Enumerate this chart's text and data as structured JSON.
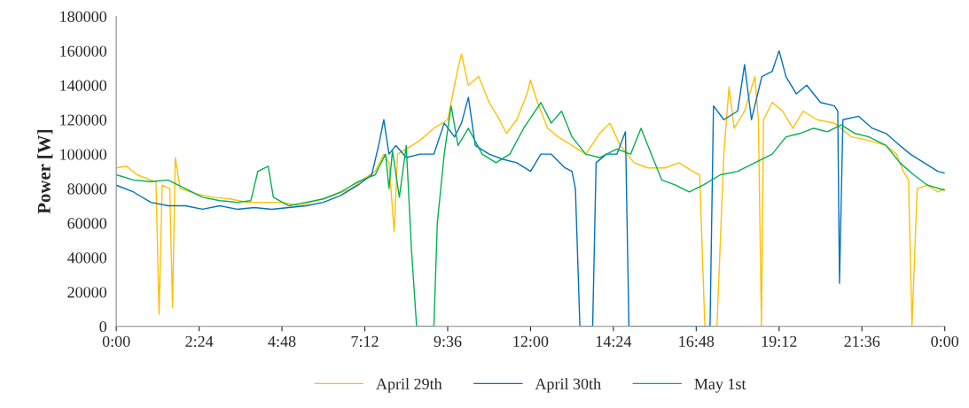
{
  "chart_data": {
    "type": "line",
    "ylabel": "Power [W]",
    "xlim": [
      0,
      24
    ],
    "xticks": [
      {
        "value": 0,
        "label": "0:00"
      },
      {
        "value": 2.4,
        "label": "2:24"
      },
      {
        "value": 4.8,
        "label": "4:48"
      },
      {
        "value": 7.2,
        "label": "7:12"
      },
      {
        "value": 9.6,
        "label": "9:36"
      },
      {
        "value": 12,
        "label": "12:00"
      },
      {
        "value": 14.4,
        "label": "14:24"
      },
      {
        "value": 16.8,
        "label": "16:48"
      },
      {
        "value": 19.2,
        "label": "19:12"
      },
      {
        "value": 21.6,
        "label": "21:36"
      },
      {
        "value": 24,
        "label": "0:00"
      }
    ],
    "ylim": [
      0,
      180000
    ],
    "yticks": [
      0,
      20000,
      40000,
      60000,
      80000,
      100000,
      120000,
      140000,
      160000,
      180000
    ],
    "grid": false,
    "legend": "bottom",
    "marker": "none",
    "line_style": "solid",
    "series": [
      {
        "name": "April 29th",
        "color": "#ffc000",
        "x": [
          0,
          0.3,
          0.6,
          1.0,
          1.15,
          1.24,
          1.33,
          1.55,
          1.63,
          1.71,
          1.85,
          2.3,
          2.8,
          3.3,
          3.8,
          4.3,
          4.8,
          5.3,
          5.8,
          6.3,
          6.8,
          7.2,
          7.5,
          7.75,
          7.9,
          8.05,
          8.15,
          8.4,
          8.8,
          9.2,
          9.6,
          9.9,
          10.0,
          10.2,
          10.5,
          10.8,
          11.1,
          11.3,
          11.6,
          11.9,
          12.0,
          12.2,
          12.5,
          12.8,
          13.2,
          13.6,
          14.0,
          14.3,
          14.6,
          15.0,
          15.4,
          15.9,
          16.3,
          16.7,
          16.9,
          17.05,
          17.4,
          17.6,
          17.75,
          17.9,
          18.2,
          18.5,
          18.6,
          18.69,
          18.75,
          19.0,
          19.3,
          19.6,
          19.9,
          20.3,
          20.8,
          21.3,
          21.8,
          22.3,
          22.6,
          22.8,
          22.95,
          23.05,
          23.2,
          23.5,
          23.8,
          24
        ],
        "values": [
          92000,
          93000,
          88000,
          85000,
          84000,
          7000,
          82000,
          80000,
          11000,
          98000,
          80000,
          77000,
          75000,
          74000,
          72000,
          72000,
          72000,
          70000,
          73000,
          76000,
          80000,
          86000,
          90000,
          100000,
          95000,
          55000,
          100000,
          103000,
          108000,
          115000,
          120000,
          150000,
          158000,
          140000,
          145000,
          130000,
          120000,
          112000,
          120000,
          135000,
          143000,
          130000,
          115000,
          110000,
          105000,
          100000,
          112000,
          118000,
          105000,
          95000,
          92000,
          92000,
          95000,
          90000,
          88000,
          0,
          0,
          100000,
          139000,
          115000,
          125000,
          145000,
          120000,
          0,
          120000,
          130000,
          125000,
          115000,
          125000,
          120000,
          118000,
          110000,
          108000,
          105000,
          100000,
          90000,
          85000,
          0,
          80000,
          82000,
          78000,
          80000
        ]
      },
      {
        "name": "April 30th",
        "color": "#0070c0",
        "x": [
          0,
          0.5,
          1,
          1.5,
          2,
          2.5,
          3,
          3.5,
          4,
          4.5,
          5,
          5.5,
          6,
          6.5,
          7,
          7.4,
          7.6,
          7.75,
          7.9,
          8.1,
          8.4,
          8.8,
          9.2,
          9.5,
          9.8,
          10.0,
          10.2,
          10.4,
          10.8,
          11.2,
          11.6,
          12.0,
          12.3,
          12.6,
          13.0,
          13.2,
          13.3,
          13.43,
          13.8,
          13.9,
          14.2,
          14.5,
          14.75,
          14.85,
          15.5,
          16.5,
          17.2,
          17.3,
          17.6,
          18.0,
          18.2,
          18.4,
          18.7,
          19.0,
          19.2,
          19.4,
          19.7,
          20.0,
          20.4,
          20.8,
          20.9,
          20.95,
          21.05,
          21.5,
          21.9,
          22.3,
          22.7,
          23.0,
          23.4,
          23.8,
          24
        ],
        "values": [
          82000,
          78000,
          72000,
          70000,
          70000,
          68000,
          70000,
          68000,
          69000,
          68000,
          69000,
          70000,
          72000,
          76000,
          82000,
          88000,
          105000,
          120000,
          100000,
          105000,
          98000,
          100000,
          100000,
          118000,
          110000,
          118000,
          133000,
          105000,
          100000,
          97000,
          95000,
          90000,
          100000,
          100000,
          92000,
          90000,
          80000,
          0,
          0,
          95000,
          100000,
          100000,
          113000,
          0,
          0,
          0,
          0,
          128000,
          120000,
          125000,
          152000,
          120000,
          145000,
          148000,
          160000,
          145000,
          135000,
          140000,
          130000,
          128000,
          125000,
          25000,
          120000,
          122000,
          115000,
          112000,
          105000,
          100000,
          95000,
          90000,
          89000
        ]
      },
      {
        "name": "May 1st",
        "color": "#00b050",
        "x": [
          0,
          0.5,
          1,
          1.5,
          2,
          2.5,
          3,
          3.5,
          3.9,
          4.1,
          4.4,
          4.55,
          5,
          5.5,
          6,
          6.5,
          7,
          7.5,
          7.8,
          7.9,
          8.0,
          8.2,
          8.4,
          8.55,
          8.7,
          9.2,
          9.3,
          9.5,
          9.7,
          9.9,
          10.2,
          10.6,
          11,
          11.4,
          11.8,
          12.3,
          12.6,
          12.9,
          13.2,
          13.6,
          14.0,
          14.5,
          14.9,
          15.2,
          15.5,
          15.8,
          16.2,
          16.6,
          17.0,
          17.5,
          18.0,
          18.5,
          19.0,
          19.4,
          19.8,
          20.2,
          20.6,
          21.0,
          21.4,
          21.8,
          22.3,
          22.7,
          23.1,
          23.5,
          24
        ],
        "values": [
          88000,
          85000,
          84000,
          85000,
          80000,
          75000,
          73000,
          72000,
          73000,
          90000,
          93000,
          75000,
          70000,
          72000,
          74000,
          78000,
          84000,
          88000,
          100000,
          80000,
          102000,
          75000,
          105000,
          45000,
          0,
          0,
          60000,
          100000,
          128000,
          105000,
          115000,
          100000,
          95000,
          100000,
          115000,
          130000,
          118000,
          125000,
          110000,
          100000,
          98000,
          103000,
          100000,
          115000,
          100000,
          85000,
          82000,
          78000,
          82000,
          88000,
          90000,
          95000,
          100000,
          110000,
          112000,
          115000,
          113000,
          117000,
          112000,
          110000,
          105000,
          95000,
          88000,
          82000,
          79000
        ]
      }
    ]
  }
}
